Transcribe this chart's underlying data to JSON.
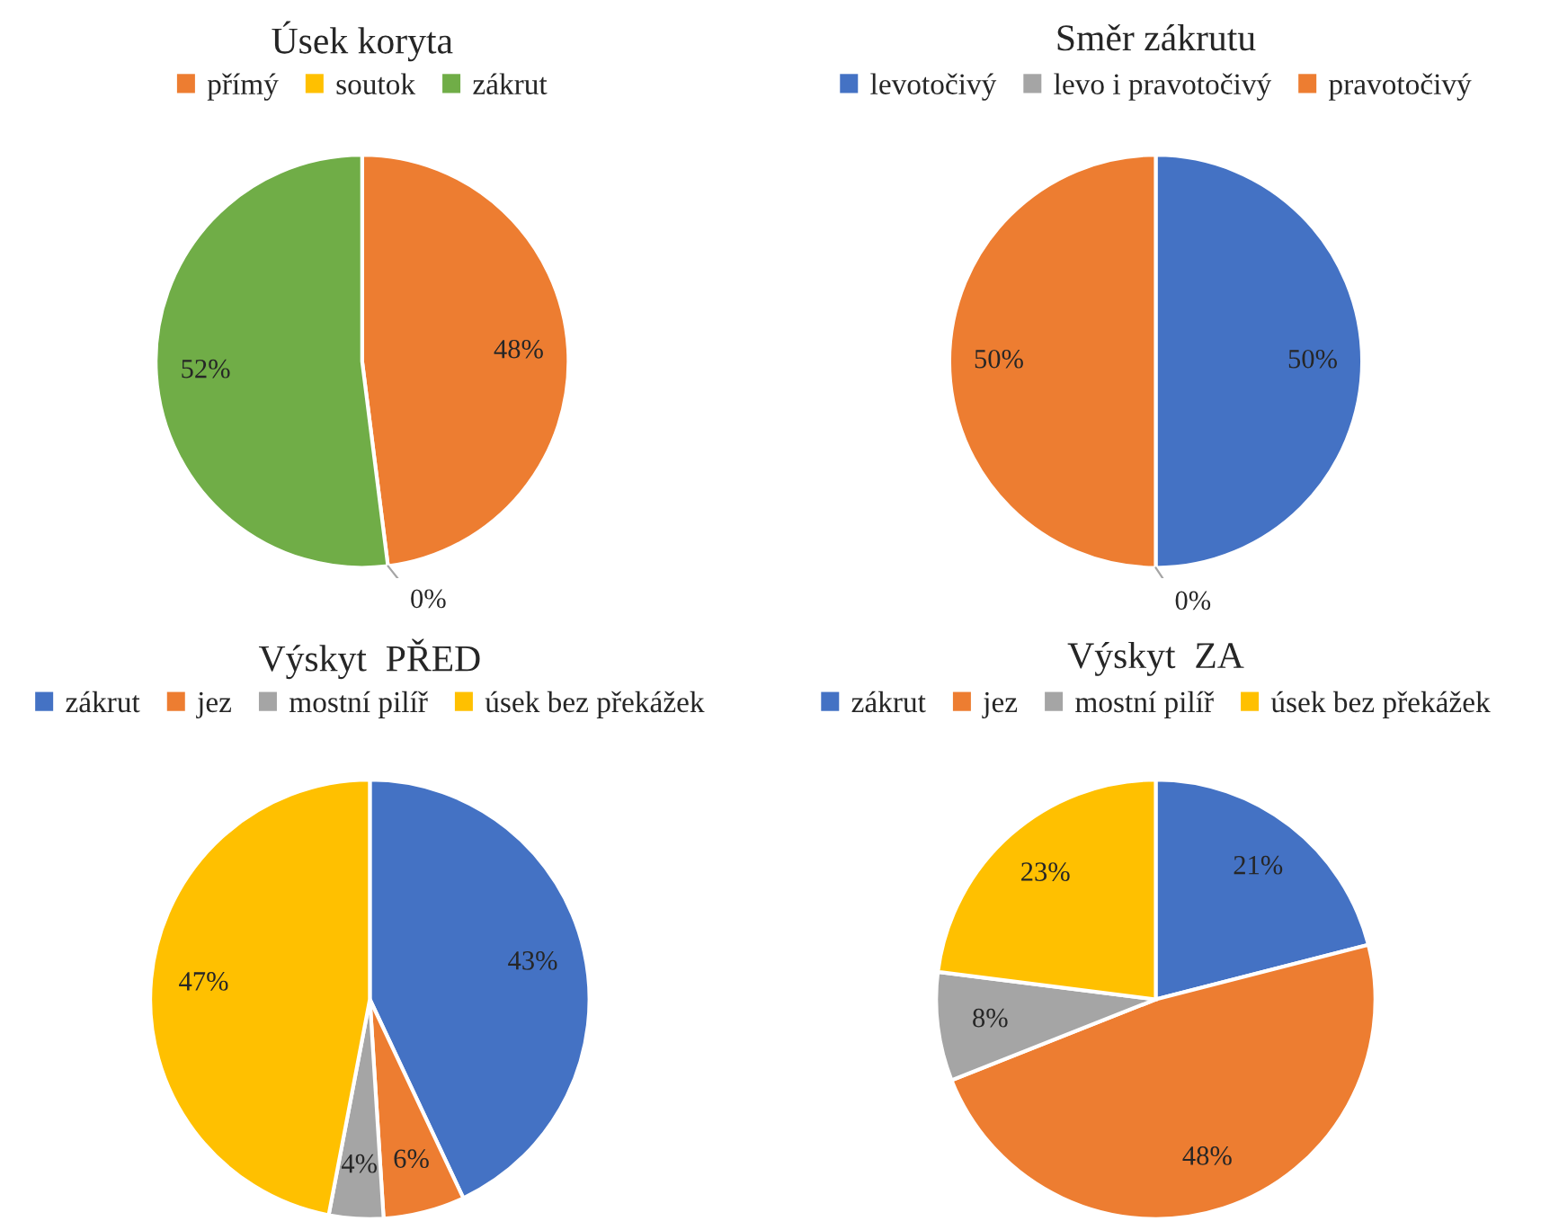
{
  "chart_data": [
    {
      "type": "pie",
      "title": "Úsek koryta",
      "categories": [
        "přímý",
        "soutok",
        "zákrut"
      ],
      "values": [
        48,
        0,
        52
      ],
      "colors": [
        "#ed7d31",
        "#ffc000",
        "#70ad47"
      ],
      "value_labels": [
        "48%",
        "0%",
        "52%"
      ],
      "legend": "top"
    },
    {
      "type": "pie",
      "title": "Směr zákrutu",
      "categories": [
        "levotočivý",
        "levo i pravotočivý",
        "pravotočivý"
      ],
      "values": [
        50,
        0,
        50
      ],
      "colors": [
        "#4472c4",
        "#a5a5a5",
        "#ed7d31"
      ],
      "value_labels": [
        "50%",
        "0%",
        "50%"
      ],
      "legend": "top"
    },
    {
      "type": "pie",
      "title": "Výskyt  PŘED",
      "categories": [
        "zákrut",
        "jez",
        "mostní pilíř",
        "úsek bez překážek"
      ],
      "values": [
        43,
        6,
        4,
        47
      ],
      "colors": [
        "#4472c4",
        "#ed7d31",
        "#a5a5a5",
        "#ffc000"
      ],
      "value_labels": [
        "43%",
        "6%",
        "4%",
        "47%"
      ],
      "legend": "top"
    },
    {
      "type": "pie",
      "title": "Výskyt  ZA",
      "categories": [
        "zákrut",
        "jez",
        "mostní pilíř",
        "úsek bez překážek"
      ],
      "values": [
        21,
        48,
        8,
        23
      ],
      "colors": [
        "#4472c4",
        "#ed7d31",
        "#a5a5a5",
        "#ffc000"
      ],
      "value_labels": [
        "21%",
        "48%",
        "8%",
        "23%"
      ],
      "legend": "top"
    }
  ]
}
